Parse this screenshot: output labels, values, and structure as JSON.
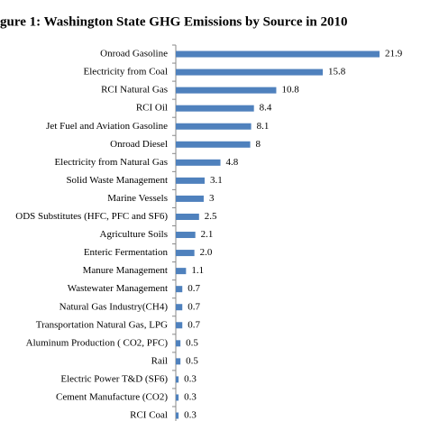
{
  "chart_data": {
    "type": "bar",
    "orientation": "horizontal",
    "title": "gure 1: Washington State GHG Emissions by Source in 2010",
    "categories": [
      "Onroad Gasoline",
      "Electricity from Coal",
      "RCI Natural Gas",
      "RCI Oil",
      "Jet Fuel and Aviation Gasoline",
      "Onroad Diesel",
      "Electricity from Natural Gas",
      "Solid Waste Management",
      "Marine Vessels",
      "ODS Substitutes (HFC, PFC and SF6)",
      "Agriculture Soils",
      "Enteric Fermentation",
      "Manure Management",
      "Wastewater Management",
      "Natural Gas Industry(CH4)",
      "Transportation Natural Gas, LPG",
      "Aluminum Production ( CO2, PFC)",
      "Rail",
      "Electric Power T&D (SF6)",
      "Cement Manufacture (CO2)",
      "RCI Coal"
    ],
    "values": [
      21.9,
      15.8,
      10.8,
      8.4,
      8.1,
      8,
      4.8,
      3.1,
      3,
      2.5,
      2.1,
      2.0,
      1.1,
      0.7,
      0.7,
      0.7,
      0.5,
      0.5,
      0.3,
      0.3,
      0.3
    ],
    "value_labels": [
      "21.9",
      "15.8",
      "10.8",
      "8.4",
      "8.1",
      "8",
      "4.8",
      "3.1",
      "3",
      "2.5",
      "2.1",
      "2.0",
      "1.1",
      "0.7",
      "0.7",
      "0.7",
      "0.5",
      "0.5",
      "0.3",
      "0.3",
      "0.3"
    ],
    "color": "#4f81bd"
  }
}
